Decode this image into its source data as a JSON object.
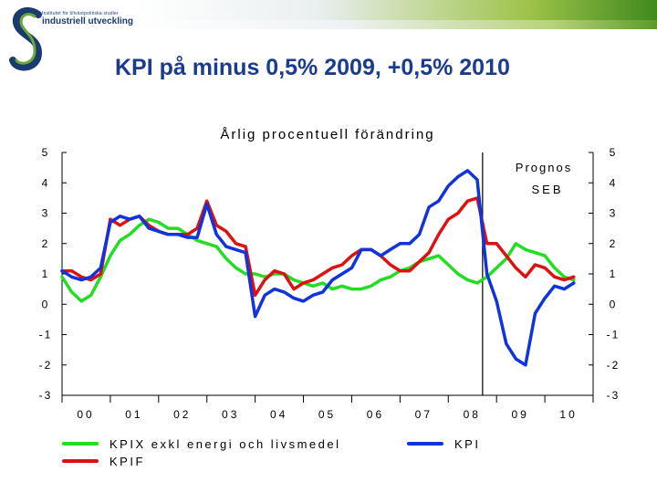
{
  "header": {
    "logo_small_text": "Institutet för tillväxtpolitiska studier",
    "logo_main_text": "industriell utveckling",
    "slide_title": "KPI på minus 0,5% 2009, +0,5% 2010"
  },
  "chart_data": {
    "type": "line",
    "title": "Årlig procentuell förändring",
    "ylim": [
      -3,
      5
    ],
    "yticks": [
      "5",
      "4",
      "3",
      "2",
      "1",
      "0",
      "-1",
      "-2",
      "-3"
    ],
    "xlim": [
      2000.0,
      2011.0
    ],
    "xticks": [
      "00",
      "01",
      "02",
      "03",
      "04",
      "05",
      "06",
      "07",
      "08",
      "09",
      "10"
    ],
    "forecast_label_1": "Prognos",
    "forecast_label_2": "SEB",
    "forecast_start": 2008.71,
    "legend_position": "bottom",
    "grid": false,
    "series": [
      {
        "name": "KPIX exkl energi och livsmedel",
        "color": "#22dd22",
        "x": [
          2000.0,
          2000.2,
          2000.4,
          2000.6,
          2000.8,
          2001.0,
          2001.2,
          2001.4,
          2001.6,
          2001.8,
          2002.0,
          2002.2,
          2002.4,
          2002.6,
          2002.8,
          2003.0,
          2003.2,
          2003.4,
          2003.6,
          2003.8,
          2004.0,
          2004.2,
          2004.4,
          2004.6,
          2004.8,
          2005.0,
          2005.2,
          2005.4,
          2005.6,
          2005.8,
          2006.0,
          2006.2,
          2006.4,
          2006.6,
          2006.8,
          2007.0,
          2007.2,
          2007.4,
          2007.6,
          2007.8,
          2008.0,
          2008.2,
          2008.4,
          2008.6,
          2008.8,
          2009.0,
          2009.2,
          2009.4,
          2009.6,
          2009.8,
          2010.0,
          2010.2,
          2010.4,
          2010.6
        ],
        "y": [
          0.9,
          0.4,
          0.1,
          0.3,
          0.9,
          1.6,
          2.1,
          2.3,
          2.6,
          2.8,
          2.7,
          2.5,
          2.5,
          2.3,
          2.1,
          2.0,
          1.9,
          1.5,
          1.2,
          1.0,
          1.0,
          0.9,
          1.0,
          1.0,
          0.8,
          0.7,
          0.6,
          0.7,
          0.5,
          0.6,
          0.5,
          0.5,
          0.6,
          0.8,
          0.9,
          1.1,
          1.2,
          1.4,
          1.5,
          1.6,
          1.3,
          1.0,
          0.8,
          0.7,
          0.9,
          1.2,
          1.5,
          2.0,
          1.8,
          1.7,
          1.6,
          1.2,
          0.9,
          0.8
        ]
      },
      {
        "name": "KPIF",
        "color": "#dd1111",
        "x": [
          2000.0,
          2000.2,
          2000.4,
          2000.6,
          2000.8,
          2001.0,
          2001.2,
          2001.4,
          2001.6,
          2001.8,
          2002.0,
          2002.2,
          2002.4,
          2002.6,
          2002.8,
          2003.0,
          2003.2,
          2003.4,
          2003.6,
          2003.8,
          2004.0,
          2004.2,
          2004.4,
          2004.6,
          2004.8,
          2005.0,
          2005.2,
          2005.4,
          2005.6,
          2005.8,
          2006.0,
          2006.2,
          2006.4,
          2006.6,
          2006.8,
          2007.0,
          2007.2,
          2007.4,
          2007.6,
          2007.8,
          2008.0,
          2008.2,
          2008.4,
          2008.6,
          2008.8,
          2009.0,
          2009.2,
          2009.4,
          2009.6,
          2009.8,
          2010.0,
          2010.2,
          2010.4,
          2010.6
        ],
        "y": [
          1.1,
          1.1,
          0.9,
          0.8,
          1.0,
          2.8,
          2.6,
          2.8,
          2.9,
          2.6,
          2.4,
          2.3,
          2.3,
          2.3,
          2.5,
          3.4,
          2.6,
          2.4,
          2.0,
          1.9,
          0.3,
          0.8,
          1.1,
          1.0,
          0.5,
          0.7,
          0.8,
          1.0,
          1.2,
          1.3,
          1.6,
          1.8,
          1.8,
          1.6,
          1.3,
          1.1,
          1.1,
          1.4,
          1.7,
          2.3,
          2.8,
          3.0,
          3.4,
          3.5,
          2.0,
          2.0,
          1.6,
          1.2,
          0.9,
          1.3,
          1.2,
          0.9,
          0.8,
          0.9
        ]
      },
      {
        "name": "KPI",
        "color": "#1133dd",
        "x": [
          2000.0,
          2000.2,
          2000.4,
          2000.6,
          2000.8,
          2001.0,
          2001.2,
          2001.4,
          2001.6,
          2001.8,
          2002.0,
          2002.2,
          2002.4,
          2002.6,
          2002.8,
          2003.0,
          2003.2,
          2003.4,
          2003.6,
          2003.8,
          2004.0,
          2004.2,
          2004.4,
          2004.6,
          2004.8,
          2005.0,
          2005.2,
          2005.4,
          2005.6,
          2005.8,
          2006.0,
          2006.2,
          2006.4,
          2006.6,
          2006.8,
          2007.0,
          2007.2,
          2007.4,
          2007.6,
          2007.8,
          2008.0,
          2008.2,
          2008.4,
          2008.6,
          2008.8,
          2009.0,
          2009.2,
          2009.4,
          2009.6,
          2009.8,
          2010.0,
          2010.2,
          2010.4,
          2010.6
        ],
        "y": [
          1.1,
          0.9,
          0.8,
          0.9,
          1.2,
          2.7,
          2.9,
          2.8,
          2.9,
          2.5,
          2.4,
          2.3,
          2.3,
          2.2,
          2.2,
          3.3,
          2.3,
          1.9,
          1.8,
          1.7,
          -0.4,
          0.3,
          0.5,
          0.4,
          0.2,
          0.1,
          0.3,
          0.4,
          0.8,
          1.0,
          1.2,
          1.8,
          1.8,
          1.6,
          1.8,
          2.0,
          2.0,
          2.3,
          3.2,
          3.4,
          3.9,
          4.2,
          4.4,
          4.1,
          1.0,
          0.1,
          -1.3,
          -1.8,
          -2.0,
          -0.3,
          0.2,
          0.6,
          0.5,
          0.7
        ]
      }
    ]
  }
}
